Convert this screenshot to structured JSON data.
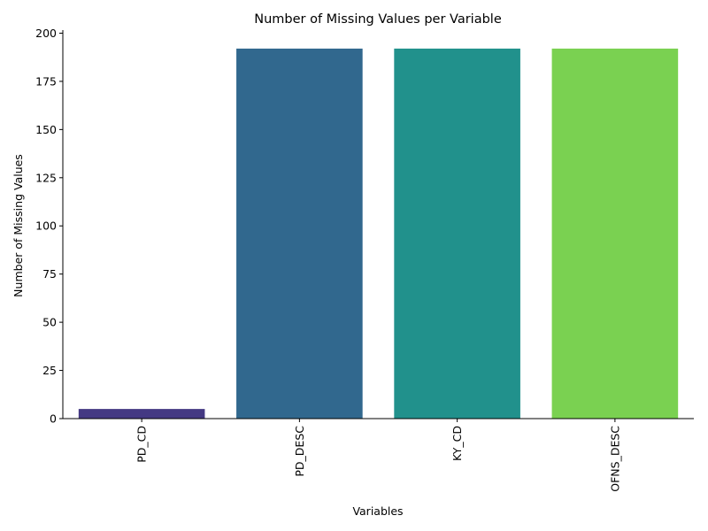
{
  "chart_data": {
    "type": "bar",
    "title": "Number of Missing Values per Variable",
    "xlabel": "Variables",
    "ylabel": "Number of Missing Values",
    "categories": [
      "PD_CD",
      "PD_DESC",
      "KY_CD",
      "OFNS_DESC"
    ],
    "values": [
      5,
      192,
      192,
      192
    ],
    "colors": [
      "#443983",
      "#31688e",
      "#21918c",
      "#7ad151"
    ],
    "ylim": [
      0,
      201.6
    ],
    "yticks": [
      0,
      25,
      50,
      75,
      100,
      125,
      150,
      175,
      200
    ],
    "ytick_labels": [
      "0",
      "25",
      "50",
      "75",
      "100",
      "125",
      "150",
      "175",
      "200"
    ],
    "xtick_rotation": "vertical",
    "grid": false,
    "legend": "none"
  }
}
